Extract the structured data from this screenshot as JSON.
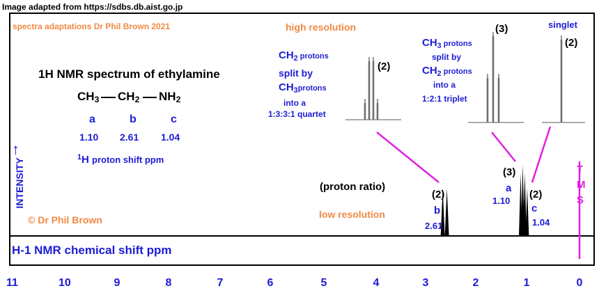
{
  "credit": {
    "source": "Image adapted from https://sdbs.db.aist.go.jp",
    "adaptation": "spectra adaptations Dr Phil Brown 2021",
    "copyright": "© Dr Phil Brown"
  },
  "title": "1H NMR spectrum of ethylamine",
  "molecule": {
    "groups": [
      {
        "main": "CH",
        "sub": "3",
        "letter": "a",
        "shift": "1.10"
      },
      {
        "main": "CH",
        "sub": "2",
        "letter": "b",
        "shift": "2.61"
      },
      {
        "main": "NH",
        "sub": "2",
        "letter": "c",
        "shift": "1.04"
      }
    ],
    "shift_caption_sup": "1",
    "shift_caption_H": "H",
    "shift_caption_rest": "proton shift  ppm"
  },
  "labels": {
    "high_resolution": "high resolution",
    "low_resolution": "low resolution",
    "proton_ratio": "(proton ratio)",
    "intensity": "INTENSITY",
    "tms": [
      "T",
      "M",
      "S"
    ],
    "singlet": "singlet"
  },
  "insets": [
    {
      "ratio": "(2)",
      "lines": [
        {
          "parts": [
            [
              "CH",
              "2",
              " protons"
            ]
          ]
        },
        {
          "parts": [
            [
              "split by",
              "",
              ""
            ]
          ]
        },
        {
          "parts": [
            [
              "CH",
              "3",
              "protons"
            ]
          ]
        },
        {
          "parts": [
            [
              "into a",
              "",
              ""
            ]
          ]
        },
        {
          "parts": [
            [
              "1:3:3:1 quartet",
              "",
              ""
            ]
          ]
        }
      ]
    },
    {
      "ratio": "(3)",
      "lines": [
        {
          "parts": [
            [
              "CH",
              "3",
              " protons"
            ]
          ]
        },
        {
          "parts": [
            [
              "split by",
              "",
              ""
            ]
          ]
        },
        {
          "parts": [
            [
              "CH",
              "2",
              " protons"
            ]
          ]
        },
        {
          "parts": [
            [
              "into a",
              "",
              ""
            ]
          ]
        },
        {
          "parts": [
            [
              "1:2:1 triplet",
              "",
              ""
            ]
          ]
        }
      ]
    },
    {
      "ratio": "(2)",
      "lines": []
    }
  ],
  "chart_data": {
    "type": "line",
    "xlabel": "H-1 NMR chemical shift ppm",
    "ylabel": "INTENSITY",
    "xlim": [
      11,
      0
    ],
    "x_ticks": [
      "11",
      "10",
      "9",
      "8",
      "7",
      "6",
      "5",
      "4",
      "3",
      "2",
      "1",
      "0"
    ],
    "peaks": [
      {
        "group": "b",
        "shift": 2.61,
        "ratio": "(2)",
        "letter": "b",
        "shift_label": "2.61",
        "relative_height": 0.67
      },
      {
        "group": "a",
        "shift": 1.1,
        "ratio": "(3)",
        "letter": "a",
        "shift_label": "1.10",
        "relative_height": 1.0
      },
      {
        "group": "c",
        "shift": 1.04,
        "ratio": "(2)",
        "letter": "c",
        "shift_label": "1.04",
        "relative_height": 0.67
      }
    ],
    "reference": {
      "label": "TMS",
      "shift": 0
    }
  },
  "colors": {
    "text_blue": "#1c1cd4",
    "orange": "#f08a45",
    "magenta": "#e020e0",
    "black": "#000000"
  }
}
